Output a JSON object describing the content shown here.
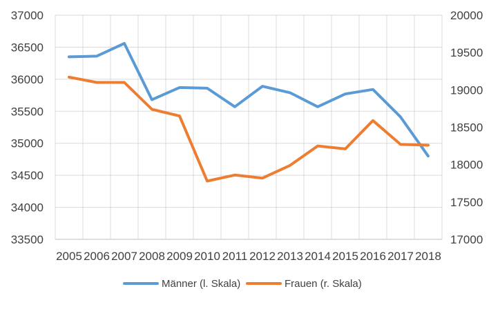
{
  "chart_data": {
    "type": "line",
    "categories": [
      "2005",
      "2006",
      "2007",
      "2008",
      "2009",
      "2010",
      "2011",
      "2012",
      "2013",
      "2014",
      "2015",
      "2016",
      "2017",
      "2018"
    ],
    "y_left": {
      "ylim": [
        33500,
        37000
      ],
      "ticks": [
        "33500",
        "34000",
        "34500",
        "35000",
        "35500",
        "36000",
        "36500",
        "37000"
      ]
    },
    "y_right": {
      "ylim": [
        17000,
        20000
      ],
      "ticks": [
        "17000",
        "17500",
        "18000",
        "18500",
        "19000",
        "19500",
        "20000"
      ]
    },
    "series": [
      {
        "name": "Männer (l. Skala)",
        "axis": "left",
        "color": "#5B9BD5",
        "values": [
          36350,
          36360,
          36560,
          35680,
          35870,
          35860,
          35570,
          35890,
          35790,
          35570,
          35770,
          35840,
          35410,
          34800
        ]
      },
      {
        "name": "Frauen (r. Skala)",
        "axis": "right",
        "color": "#ED7D31",
        "values": [
          19170,
          19100,
          19100,
          18740,
          18650,
          17780,
          17860,
          17820,
          17990,
          18250,
          18210,
          18590,
          18270,
          18260
        ]
      }
    ],
    "grid": true,
    "legend_position": "bottom"
  }
}
